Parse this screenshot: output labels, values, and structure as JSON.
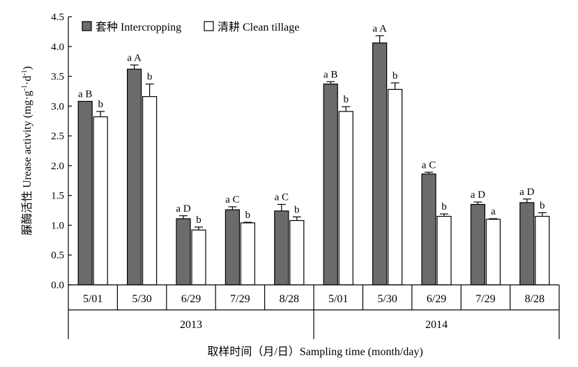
{
  "chart_data": {
    "type": "bar",
    "ylabel_parts": [
      "脲酶活性 Urease activity (mg·g",
      "-1",
      "·d",
      "-1",
      ")"
    ],
    "xlabel": "取样时间（月/日）Sampling time (month/day)",
    "ylim": [
      0,
      4.5
    ],
    "yticks": [
      "0.0",
      "0.5",
      "1.0",
      "1.5",
      "2.0",
      "2.5",
      "3.0",
      "3.5",
      "4.0",
      "4.5"
    ],
    "grid": false,
    "legend_position": "top-left",
    "colors": {
      "intercropping": "#6b6b6b",
      "clean_tillage": "#ffffff",
      "axis": "#000000"
    },
    "groups": [
      {
        "year": "2013",
        "dates": [
          "5/01",
          "5/30",
          "6/29",
          "7/29",
          "8/28"
        ]
      },
      {
        "year": "2014",
        "dates": [
          "5/01",
          "5/30",
          "6/29",
          "7/29",
          "8/28"
        ]
      }
    ],
    "series": [
      {
        "name": "套种 Intercropping",
        "key": "intercropping",
        "values": [
          3.08,
          3.62,
          1.11,
          1.26,
          1.24,
          3.37,
          4.06,
          1.86,
          1.35,
          1.38
        ],
        "errors": [
          0.0,
          0.07,
          0.05,
          0.05,
          0.11,
          0.04,
          0.12,
          0.03,
          0.04,
          0.06
        ],
        "labels": [
          "a B",
          "a A",
          "a D",
          "a C",
          "a C",
          "a B",
          "a A",
          "a C",
          "a D",
          "a D"
        ]
      },
      {
        "name": "清耕 Clean tillage",
        "key": "clean_tillage",
        "values": [
          2.82,
          3.16,
          0.92,
          1.04,
          1.08,
          2.91,
          3.28,
          1.15,
          1.1,
          1.15
        ],
        "errors": [
          0.09,
          0.21,
          0.05,
          0.01,
          0.06,
          0.08,
          0.11,
          0.04,
          0.01,
          0.06
        ],
        "labels": [
          "b",
          "b",
          "b",
          "b",
          "b",
          "b",
          "b",
          "b",
          "a",
          "b"
        ]
      }
    ]
  }
}
